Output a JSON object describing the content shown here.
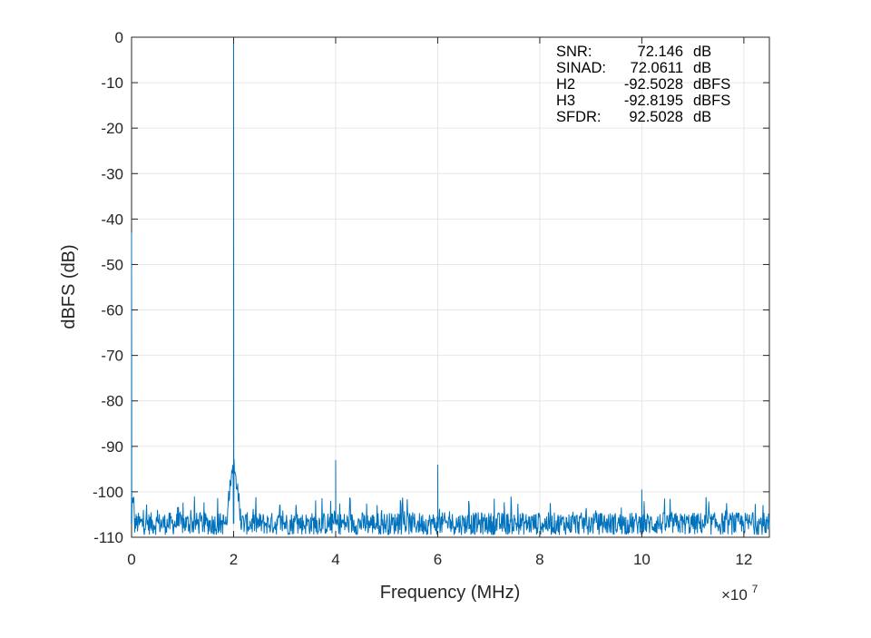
{
  "chart_data": {
    "type": "line",
    "xlabel": "Frequency (MHz)",
    "ylabel": "dBFS (dB)",
    "x_exponent_base": "×10",
    "x_exponent_power": "7",
    "xlim": [
      0,
      12.5
    ],
    "ylim": [
      -110,
      0
    ],
    "x_ticks": [
      "0",
      "2",
      "4",
      "6",
      "8",
      "10",
      "12"
    ],
    "y_ticks": [
      "0",
      "-10",
      "-20",
      "-30",
      "-40",
      "-50",
      "-60",
      "-70",
      "-80",
      "-90",
      "-100",
      "-110"
    ],
    "grid": true,
    "colors": {
      "series": "#0072BD",
      "grid": "#e6e6e6",
      "axis": "#262626"
    },
    "noise_floor": -107,
    "peaks": [
      {
        "x": 0.0,
        "y": -43
      },
      {
        "x": 2.0,
        "y": -1
      },
      {
        "x": 4.0,
        "y": -93
      },
      {
        "x": 6.0,
        "y": -94
      },
      {
        "x": 10.0,
        "y": -99.5
      }
    ],
    "annotation": [
      {
        "label": "SNR:",
        "value": "72.146",
        "unit": "dB"
      },
      {
        "label": "SINAD:",
        "value": "72.0611",
        "unit": "dB"
      },
      {
        "label": "H2",
        "value": "-92.5028",
        "unit": "dBFS"
      },
      {
        "label": "H3",
        "value": "-92.8195",
        "unit": "dBFS"
      },
      {
        "label": "SFDR:",
        "value": "92.5028",
        "unit": "dB"
      }
    ]
  }
}
